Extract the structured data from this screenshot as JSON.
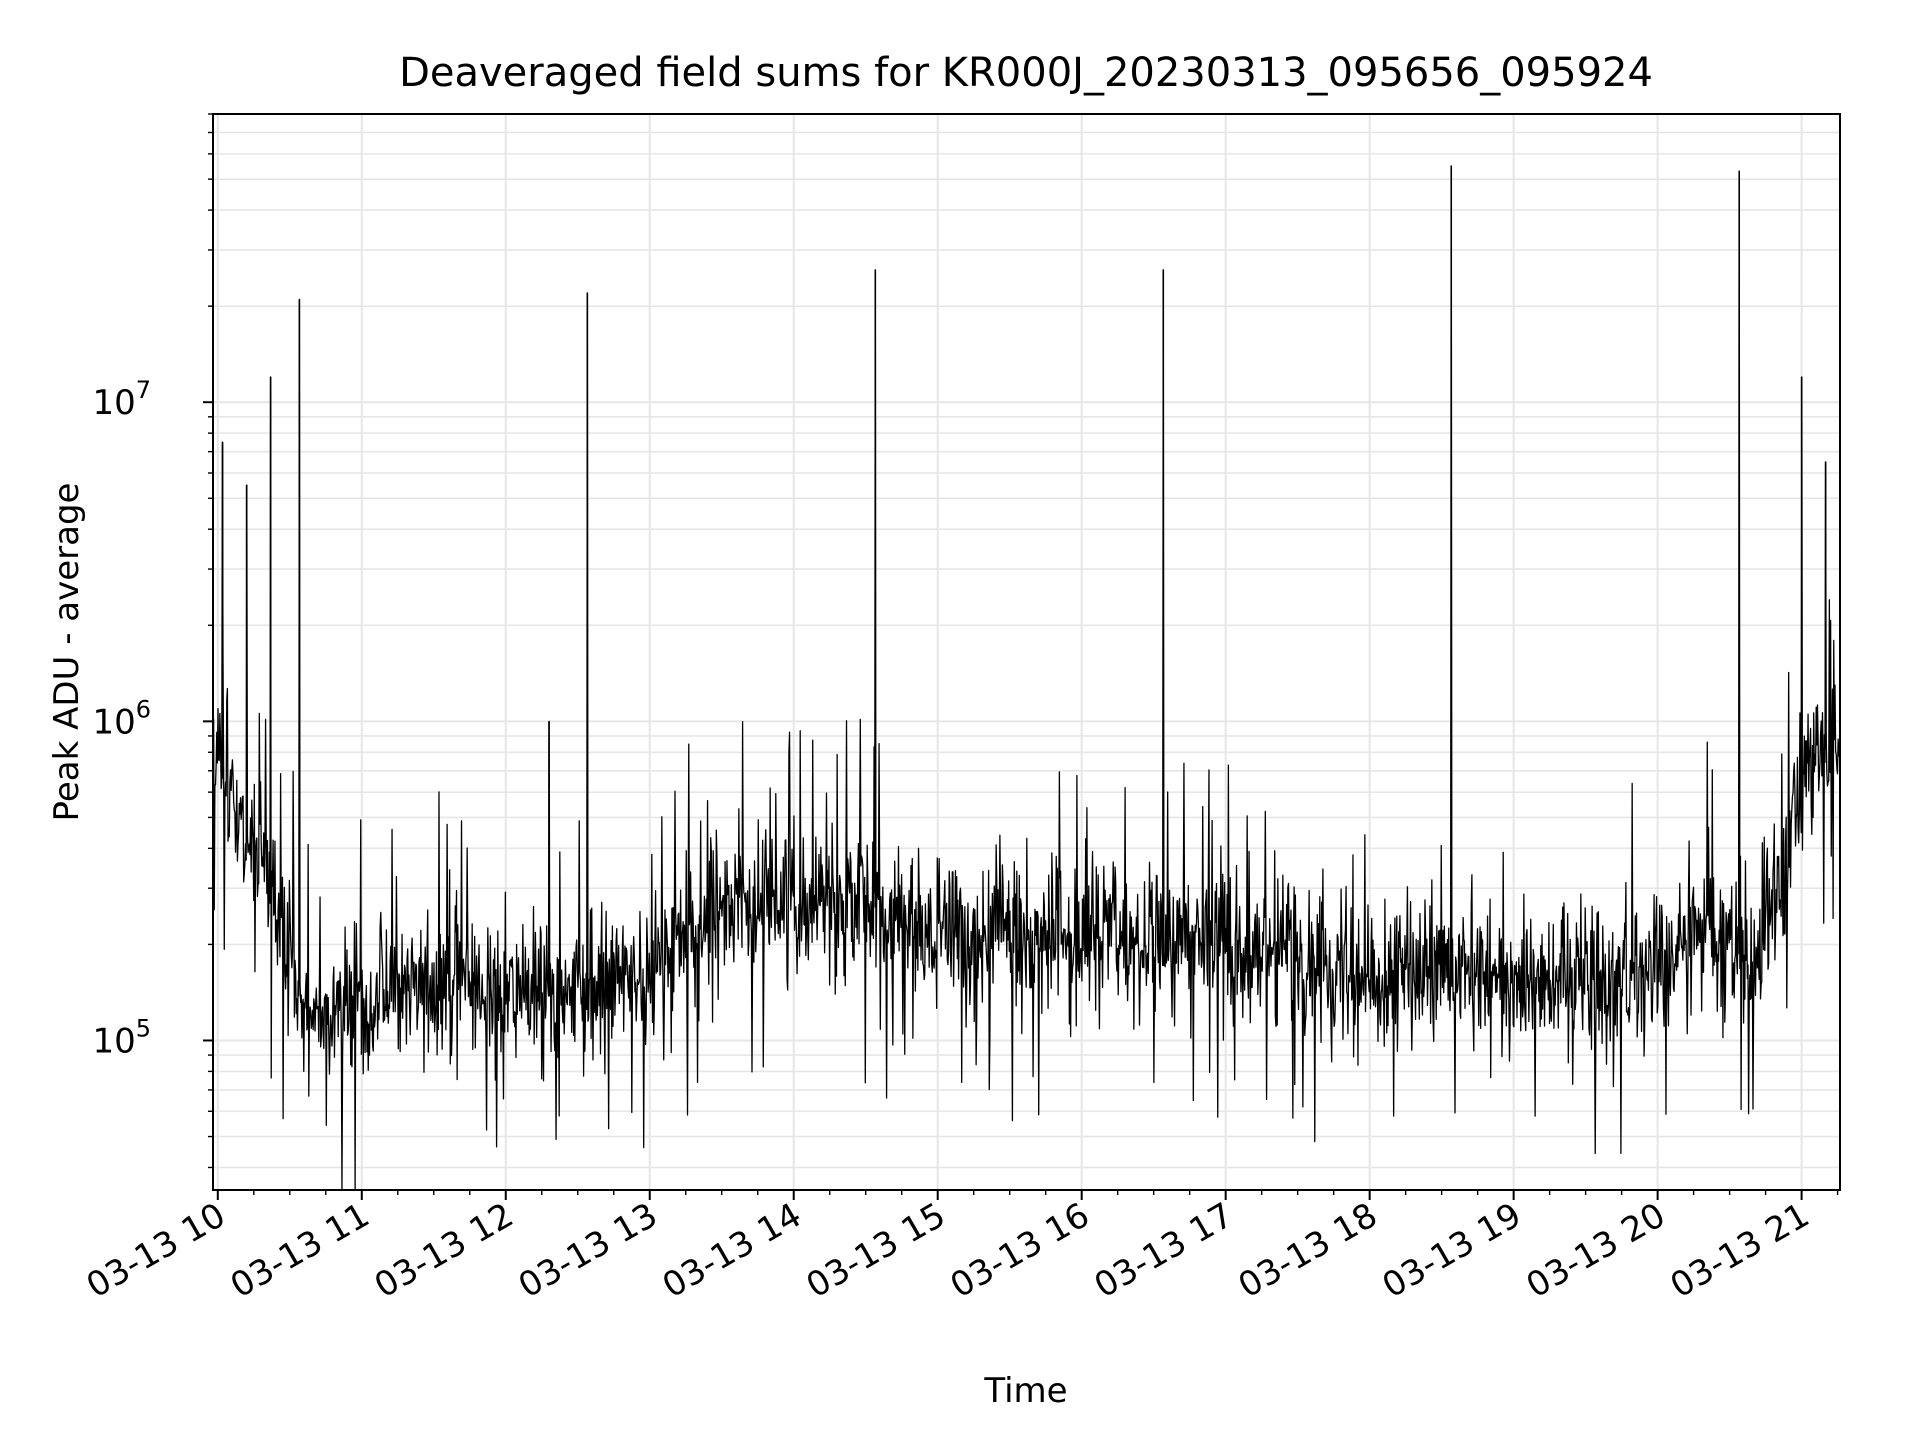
{
  "chart_data": {
    "type": "line",
    "title": "Deaveraged field sums for KR000J_20230313_095656_095924",
    "xlabel": "Time",
    "ylabel": "Peak ADU - average",
    "yscale": "log",
    "ylim": [
      34000,
      80000000
    ],
    "xlim": [
      "03-13 09:58",
      "03-13 21:16"
    ],
    "grid": true,
    "line_color": "#000000",
    "grid_color": "#e6e6e6",
    "x_ticks": [
      {
        "label": "03-13 10",
        "hour": 10
      },
      {
        "label": "03-13 11",
        "hour": 11
      },
      {
        "label": "03-13 12",
        "hour": 12
      },
      {
        "label": "03-13 13",
        "hour": 13
      },
      {
        "label": "03-13 14",
        "hour": 14
      },
      {
        "label": "03-13 15",
        "hour": 15
      },
      {
        "label": "03-13 16",
        "hour": 16
      },
      {
        "label": "03-13 17",
        "hour": 17
      },
      {
        "label": "03-13 18",
        "hour": 18
      },
      {
        "label": "03-13 19",
        "hour": 19
      },
      {
        "label": "03-13 20",
        "hour": 20
      },
      {
        "label": "03-13 21",
        "hour": 21
      }
    ],
    "y_ticks": [
      {
        "base": "10",
        "exp": "5",
        "value": 100000
      },
      {
        "base": "10",
        "exp": "6",
        "value": 1000000
      },
      {
        "base": "10",
        "exp": "7",
        "value": 10000000
      }
    ],
    "baseline_profile": [
      {
        "time": "03-13 09:58",
        "value": 800000
      },
      {
        "time": "03-13 10:10",
        "value": 450000
      },
      {
        "time": "03-13 10:25",
        "value": 250000
      },
      {
        "time": "03-13 10:40",
        "value": 120000
      },
      {
        "time": "03-13 11:00",
        "value": 130000
      },
      {
        "time": "03-13 11:30",
        "value": 160000
      },
      {
        "time": "03-13 12:00",
        "value": 140000
      },
      {
        "time": "03-13 12:30",
        "value": 140000
      },
      {
        "time": "03-13 13:00",
        "value": 170000
      },
      {
        "time": "03-13 13:30",
        "value": 260000
      },
      {
        "time": "03-13 14:00",
        "value": 270000
      },
      {
        "time": "03-13 14:30",
        "value": 270000
      },
      {
        "time": "03-13 15:00",
        "value": 210000
      },
      {
        "time": "03-13 15:30",
        "value": 220000
      },
      {
        "time": "03-13 16:00",
        "value": 210000
      },
      {
        "time": "03-13 16:30",
        "value": 200000
      },
      {
        "time": "03-13 17:00",
        "value": 210000
      },
      {
        "time": "03-13 17:30",
        "value": 190000
      },
      {
        "time": "03-13 18:00",
        "value": 160000
      },
      {
        "time": "03-13 18:30",
        "value": 160000
      },
      {
        "time": "03-13 19:00",
        "value": 160000
      },
      {
        "time": "03-13 19:30",
        "value": 160000
      },
      {
        "time": "03-13 20:00",
        "value": 170000
      },
      {
        "time": "03-13 20:20",
        "value": 230000
      },
      {
        "time": "03-13 20:40",
        "value": 170000
      },
      {
        "time": "03-13 20:50",
        "value": 300000
      },
      {
        "time": "03-13 21:00",
        "value": 700000
      },
      {
        "time": "03-13 21:16",
        "value": 900000
      }
    ],
    "spikes": [
      {
        "time": "03-13 10:02",
        "value": 7500000
      },
      {
        "time": "03-13 10:12",
        "value": 5500000
      },
      {
        "time": "03-13 10:22",
        "value": 12000000
      },
      {
        "time": "03-13 10:34",
        "value": 21000000
      },
      {
        "time": "03-13 12:18",
        "value": 1000000
      },
      {
        "time": "03-13 12:34",
        "value": 22000000
      },
      {
        "time": "03-13 14:34",
        "value": 26000000
      },
      {
        "time": "03-13 16:34",
        "value": 26000000
      },
      {
        "time": "03-13 18:34",
        "value": 55000000
      },
      {
        "time": "03-13 20:34",
        "value": 53000000
      },
      {
        "time": "03-13 21:00",
        "value": 12000000
      },
      {
        "time": "03-13 21:10",
        "value": 6500000
      }
    ]
  }
}
